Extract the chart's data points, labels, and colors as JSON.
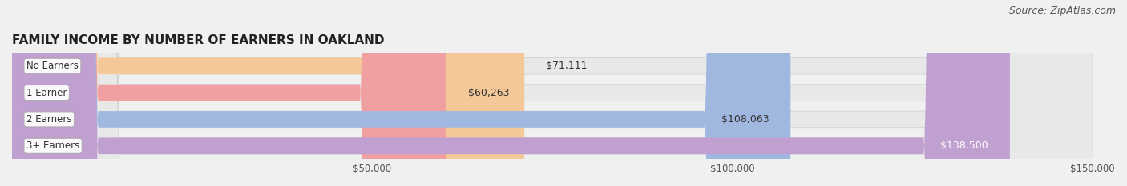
{
  "title": "FAMILY INCOME BY NUMBER OF EARNERS IN OAKLAND",
  "source": "Source: ZipAtlas.com",
  "categories": [
    "No Earners",
    "1 Earner",
    "2 Earners",
    "3+ Earners"
  ],
  "values": [
    71111,
    60263,
    108063,
    138500
  ],
  "labels": [
    "$71,111",
    "$60,263",
    "$108,063",
    "$138,500"
  ],
  "bar_colors": [
    "#f5c89a",
    "#f0a0a0",
    "#a0b8e0",
    "#c0a0d0"
  ],
  "bar_edge_colors": [
    "#e8a060",
    "#d06060",
    "#6080c0",
    "#9060a0"
  ],
  "label_colors": [
    "#333333",
    "#333333",
    "#333333",
    "#ffffff"
  ],
  "bg_color": "#f0f0f0",
  "bar_bg_color": "#e8e8e8",
  "xlim_min": 0,
  "xlim_max": 150000,
  "xticks": [
    50000,
    100000,
    150000
  ],
  "xticklabels": [
    "$50,000",
    "$100,000",
    "$150,000"
  ],
  "title_fontsize": 11,
  "source_fontsize": 9,
  "label_fontsize": 9,
  "category_fontsize": 8.5
}
